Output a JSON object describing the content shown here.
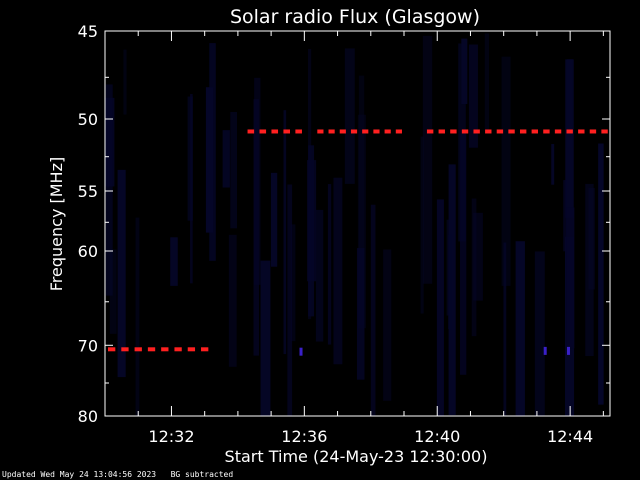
{
  "colors": {
    "background": "#000000",
    "spectrogram": "#050628",
    "rfi_marks": "#ff2020",
    "burst": "#3a20c8",
    "axes": "#ffffff"
  },
  "footer": {
    "updated": "Updated Wed May 24 13:04:56 2023",
    "note": "BG subtracted"
  },
  "chart_data": {
    "type": "heatmap",
    "title": "Solar radio Flux (Glasgow)",
    "xlabel": "Start Time (24-May-23 12:30:00)",
    "ylabel": "Frequency [MHz]",
    "xlim_minutes": [
      0,
      15.2
    ],
    "ylim_mhz": [
      45,
      80
    ],
    "y_scale": "reciprocal",
    "y_ticks": [
      45,
      50,
      55,
      60,
      70,
      80
    ],
    "x_ticks": [
      {
        "minute": 2,
        "label": "12:32"
      },
      {
        "minute": 6,
        "label": "12:36"
      },
      {
        "minute": 10,
        "label": "12:40"
      },
      {
        "minute": 14,
        "label": "12:44"
      }
    ],
    "series": [
      {
        "freq_mhz": 70.5,
        "start_min": 0.0,
        "end_min": 3.2,
        "dash_count": 8
      },
      {
        "freq_mhz": 50.8,
        "start_min": 4.2,
        "end_min": 6.0,
        "dash_count": 5
      },
      {
        "freq_mhz": 50.8,
        "start_min": 6.3,
        "end_min": 9.0,
        "dash_count": 8
      },
      {
        "freq_mhz": 50.8,
        "start_min": 9.6,
        "end_min": 15.2,
        "dash_count": 16
      }
    ],
    "bursts": [
      {
        "minute": 5.9,
        "freq_mhz": 70.8
      },
      {
        "minute": 13.25,
        "freq_mhz": 70.7
      },
      {
        "minute": 13.95,
        "freq_mhz": 70.7
      }
    ],
    "grid": false,
    "legend": "none"
  }
}
